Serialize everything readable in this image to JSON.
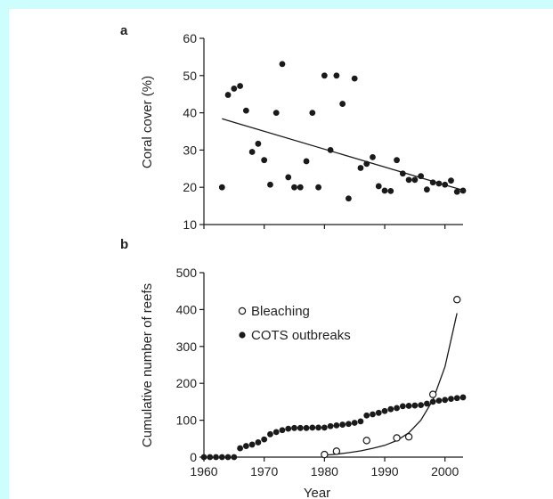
{
  "colors": {
    "background_border": "#cdfdfd",
    "panel": "#ffffff",
    "ink": "#1a1a1a"
  },
  "chart_data": [
    {
      "panel_label": "a",
      "type": "scatter",
      "ylabel": "Coral cover (%)",
      "xlim": [
        1960,
        2003
      ],
      "ylim": [
        10,
        60
      ],
      "yticks": [
        10,
        20,
        30,
        40,
        50,
        60
      ],
      "x_shared_with_panel_b": true,
      "series": [
        {
          "marker": "filled-circle",
          "points": [
            [
              1963,
              20.0
            ],
            [
              1964,
              44.8
            ],
            [
              1965,
              46.5
            ],
            [
              1966,
              47.2
            ],
            [
              1967,
              40.6
            ],
            [
              1968,
              29.5
            ],
            [
              1969,
              31.7
            ],
            [
              1970,
              27.3
            ],
            [
              1971,
              20.7
            ],
            [
              1972,
              40.0
            ],
            [
              1973,
              53.1
            ],
            [
              1974,
              22.7
            ],
            [
              1975,
              20.0
            ],
            [
              1976,
              20.0
            ],
            [
              1977,
              27.0
            ],
            [
              1978,
              40.0
            ],
            [
              1979,
              20.0
            ],
            [
              1980,
              50.0
            ],
            [
              1981,
              30.0
            ],
            [
              1982,
              50.0
            ],
            [
              1983,
              42.4
            ],
            [
              1984,
              17.0
            ],
            [
              1985,
              49.2
            ],
            [
              1986,
              25.2
            ],
            [
              1987,
              26.3
            ],
            [
              1988,
              28.1
            ],
            [
              1989,
              20.3
            ],
            [
              1990,
              19.1
            ],
            [
              1991,
              19.0
            ],
            [
              1992,
              27.3
            ],
            [
              1993,
              23.7
            ],
            [
              1994,
              22.0
            ],
            [
              1995,
              22.0
            ],
            [
              1996,
              23.0
            ],
            [
              1997,
              19.4
            ],
            [
              1998,
              21.3
            ],
            [
              1999,
              21.0
            ],
            [
              2000,
              20.7
            ],
            [
              2001,
              21.8
            ],
            [
              2002,
              18.8
            ],
            [
              2003,
              19.1
            ]
          ]
        }
      ],
      "trend_line": {
        "x": [
          1963,
          2003
        ],
        "y": [
          38.4,
          19.2
        ]
      }
    },
    {
      "panel_label": "b",
      "type": "scatter",
      "xlabel": "Year",
      "ylabel": "Cumulative number of reefs",
      "xlim": [
        1960,
        2003
      ],
      "ylim": [
        0,
        500
      ],
      "xticks": [
        1960,
        1970,
        1980,
        1990,
        2000
      ],
      "yticks": [
        0,
        100,
        200,
        300,
        400,
        500
      ],
      "legend_position": "upper-left",
      "series": [
        {
          "name": "Bleaching",
          "marker": "open-circle",
          "points": [
            [
              1980,
              7
            ],
            [
              1982,
              16
            ],
            [
              1987,
              45
            ],
            [
              1992,
              52
            ],
            [
              1994,
              55
            ],
            [
              1998,
              170
            ],
            [
              2002,
              427
            ]
          ],
          "fit_curve": {
            "type": "exponential",
            "x": [
              1980,
              1982,
              1984,
              1986,
              1988,
              1990,
              1992,
              1994,
              1996,
              1998,
              2000,
              2002
            ],
            "y": [
              5,
              8,
              12,
              17,
              24,
              32,
              45,
              66,
              100,
              155,
              245,
              390
            ]
          }
        },
        {
          "name": "COTS outbreaks",
          "marker": "filled-circle",
          "points": [
            [
              1960,
              0
            ],
            [
              1961,
              0
            ],
            [
              1962,
              0
            ],
            [
              1963,
              0
            ],
            [
              1964,
              0
            ],
            [
              1965,
              0
            ],
            [
              1966,
              24
            ],
            [
              1967,
              30
            ],
            [
              1968,
              34
            ],
            [
              1969,
              40
            ],
            [
              1970,
              48
            ],
            [
              1971,
              62
            ],
            [
              1972,
              68
            ],
            [
              1973,
              73
            ],
            [
              1974,
              77
            ],
            [
              1975,
              79
            ],
            [
              1976,
              79
            ],
            [
              1977,
              79
            ],
            [
              1978,
              80
            ],
            [
              1979,
              80
            ],
            [
              1980,
              80
            ],
            [
              1981,
              84
            ],
            [
              1982,
              86
            ],
            [
              1983,
              88
            ],
            [
              1984,
              90
            ],
            [
              1985,
              93
            ],
            [
              1986,
              97
            ],
            [
              1987,
              113
            ],
            [
              1988,
              116
            ],
            [
              1989,
              120
            ],
            [
              1990,
              125
            ],
            [
              1991,
              130
            ],
            [
              1992,
              133
            ],
            [
              1993,
              138
            ],
            [
              1994,
              139
            ],
            [
              1995,
              140
            ],
            [
              1996,
              141
            ],
            [
              1997,
              145
            ],
            [
              1998,
              150
            ],
            [
              1999,
              153
            ],
            [
              2000,
              155
            ],
            [
              2001,
              158
            ],
            [
              2002,
              160
            ],
            [
              2003,
              162
            ]
          ]
        }
      ]
    }
  ]
}
